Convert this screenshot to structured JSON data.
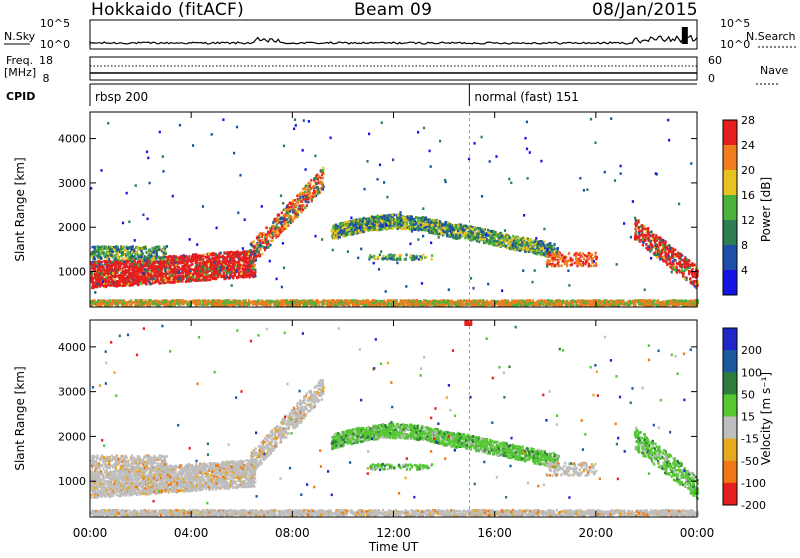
{
  "header": {
    "station": "Hokkaido (fitACF)",
    "beam": "Beam 09",
    "date": "08/Jan/2015"
  },
  "status_panels": {
    "nsky_label": "N.Sky",
    "nsky_ticks": [
      "10^5",
      "10^0"
    ],
    "nsearch_label": "N.Search",
    "nsearch_ticks": [
      "10^5",
      "10^0"
    ],
    "freq_label_1": "Freq.",
    "freq_label_2": "[MHz]",
    "freq_ticks": [
      "18",
      "8"
    ],
    "nave_label": "Nave",
    "nave_ticks": [
      "60",
      "0"
    ],
    "cpid_label": "CPID",
    "cpid_segments": [
      {
        "start_hour": 0,
        "label": "rbsp 200"
      },
      {
        "start_hour": 15,
        "label": "normal (fast) 151"
      }
    ]
  },
  "chart_data": [
    {
      "type": "heatmap",
      "name": "power",
      "ylabel": "Slant Range [km]",
      "yticks": [
        "1000",
        "2000",
        "3000",
        "4000"
      ],
      "ylim": [
        200,
        4600
      ],
      "xlim": [
        0,
        24
      ],
      "colorbar": {
        "title": "Power [dB]",
        "labels": [
          "4",
          "8",
          "12",
          "16",
          "20",
          "24",
          "28"
        ],
        "colors": [
          "#1414e6",
          "#1e4fa8",
          "#2f7d52",
          "#4cb23c",
          "#e8c21e",
          "#f07d1e",
          "#e61e1e"
        ]
      }
    },
    {
      "type": "heatmap",
      "name": "velocity",
      "ylabel": "Slant Range [km]",
      "yticks": [
        "1000",
        "2000",
        "3000",
        "4000"
      ],
      "ylim": [
        200,
        4600
      ],
      "xlim": [
        0,
        24
      ],
      "colorbar": {
        "title": "Velocity [m s⁻¹]",
        "labels": [
          "200",
          "100",
          "50",
          "15",
          "-15",
          "-50",
          "-100",
          "-200"
        ],
        "colors": [
          "#1e28c8",
          "#1e5aa0",
          "#2f7d3c",
          "#55c832",
          "#bebebe",
          "#e6aa1e",
          "#f07814",
          "#e61e1e"
        ]
      }
    }
  ],
  "xaxis": {
    "label": "Time UT",
    "ticks": [
      "00:00",
      "04:00",
      "08:00",
      "12:00",
      "16:00",
      "20:00",
      "00:00"
    ],
    "tick_hours": [
      0,
      4,
      8,
      12,
      16,
      20,
      24
    ]
  },
  "colors": {
    "power_base": "#e61e1e",
    "ground_grey": "#bebebe",
    "green": "#4cb23c",
    "blue": "#1e4fa8"
  }
}
